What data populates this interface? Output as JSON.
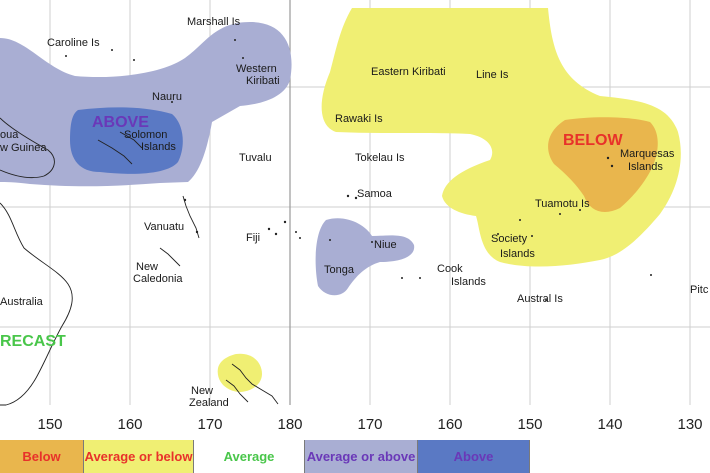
{
  "map": {
    "ticks": [
      "150",
      "160",
      "170",
      "180",
      "170",
      "160",
      "150",
      "140",
      "130"
    ],
    "places": {
      "marshall": "Marshall Is",
      "caroline": "Caroline Is",
      "western_kiribati_1": "Western",
      "western_kiribati_2": "Kiribati",
      "nauru": "Nauru",
      "png_1": "oua",
      "png_2": "w Guinea",
      "solomon_1": "Solomon",
      "solomon_2": "Islands",
      "tuvalu": "Tuvalu",
      "eastern_kiribati": "Eastern Kiribati",
      "line_is": "Line Is",
      "rawaki": "Rawaki Is",
      "tokelau": "Tokelau Is",
      "samoa": "Samoa",
      "marquesas_1": "Marquesas",
      "marquesas_2": "Islands",
      "tuamotu": "Tuamotu Is",
      "vanuatu": "Vanuatu",
      "fiji": "Fiji",
      "niue": "Niue",
      "tonga": "Tonga",
      "society_1": "Society",
      "society_2": "Islands",
      "new_caledonia_1": "New",
      "new_caledonia_2": "Caledonia",
      "cook_1": "Cook",
      "cook_2": "Islands",
      "australia": "Australia",
      "austral": "Austral Is",
      "pitcairn": "Pitc",
      "new_zealand_1": "New",
      "new_zealand_2": "Zealand"
    },
    "zone_labels": {
      "above": "ABOVE",
      "below": "BELOW",
      "forecast": "RECAST"
    },
    "colors": {
      "average_or_above_fill": "#a9aed3",
      "above_fill": "#5a79c4",
      "average_or_below_fill": "#f0ef73",
      "below_fill": "#e9b64d",
      "above_text": "#6a38b8",
      "below_text": "#e8312a",
      "forecast_text": "#49c64a"
    }
  },
  "legend": [
    {
      "text": "Below",
      "fill": "#e9b64d",
      "color": "#e8312a"
    },
    {
      "text": "Average or below",
      "fill": "#f0ef73",
      "color": "#e8312a"
    },
    {
      "text": "Average",
      "fill": "#ffffff",
      "color": "#49c64a"
    },
    {
      "text": "Average or above",
      "fill": "#a9aed3",
      "color": "#6a38b8"
    },
    {
      "text": "Above",
      "fill": "#5a79c4",
      "color": "#6a38b8"
    }
  ]
}
